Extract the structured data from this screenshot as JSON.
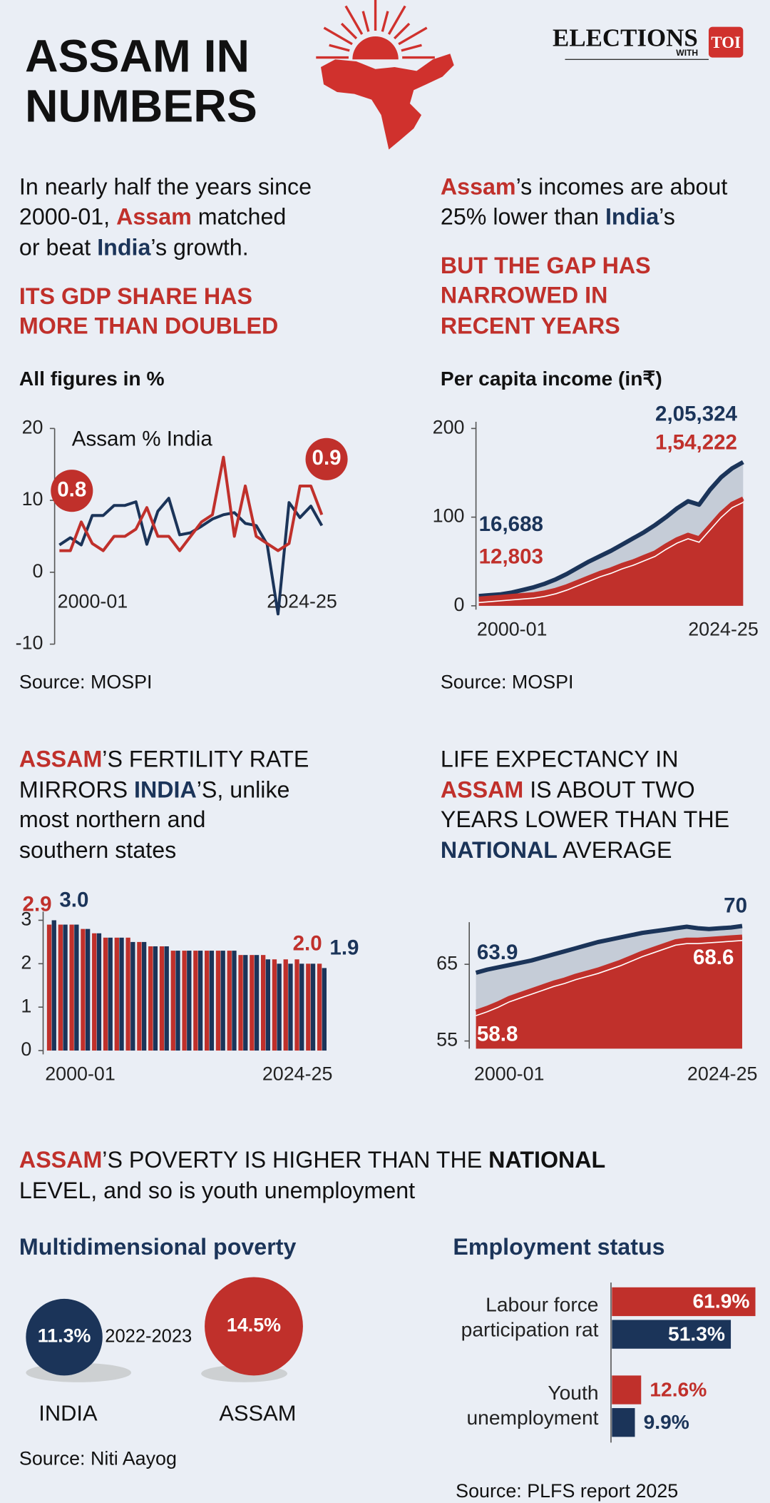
{
  "header": {
    "title": [
      "ASSAM IN",
      "NUMBERS"
    ],
    "brand": "ELECTIONS",
    "brand_sub": "WITH",
    "brand_logo": "TOI"
  },
  "sections": {
    "gdp": {
      "intro": [
        [
          "In nearly half the years since"
        ],
        [
          "2000-01, ",
          "Assam",
          " matched"
        ],
        [
          "or beat ",
          "India",
          "’s growth."
        ]
      ],
      "headline": [
        "ITS GDP SHARE HAS",
        "MORE THAN DOUBLED"
      ]
    },
    "income": {
      "intro": [
        [
          "Assam",
          "’s incomes are about"
        ],
        [
          "25% lower than ",
          "India",
          "’s"
        ]
      ],
      "headline": [
        "BUT THE GAP HAS",
        "NARROWED IN",
        "RECENT YEARS"
      ]
    },
    "fertility": {
      "heading": [
        [
          "ASSAM",
          "’S FERTILITY RATE"
        ],
        [
          "MIRRORS ",
          "INDIA",
          "’S, unlike"
        ],
        [
          "most northern and"
        ],
        [
          "southern states"
        ]
      ]
    },
    "life": {
      "heading": [
        [
          "LIFE EXPECTANCY IN"
        ],
        [
          "ASSAM",
          " IS ABOUT TWO"
        ],
        [
          "YEARS LOWER THAN THE"
        ],
        [
          "NATIONAL",
          " AVERAGE"
        ]
      ]
    },
    "poverty": {
      "heading": [
        [
          "ASSAM",
          "’S POVERTY IS HIGHER THAN THE ",
          "NATIONAL"
        ],
        [
          "LEVEL, and so is youth unemployment"
        ]
      ]
    }
  },
  "chart_data": [
    {
      "type": "line",
      "title": "All figures in %",
      "label": "Assam % India",
      "source": "Source: MOSPI",
      "annotations": [
        "0.8",
        "0.9"
      ],
      "categories": [
        "2000-01",
        null,
        null,
        null,
        null,
        null,
        null,
        null,
        null,
        null,
        null,
        null,
        null,
        null,
        null,
        null,
        null,
        null,
        null,
        null,
        null,
        null,
        null,
        null,
        "2024-25"
      ],
      "series": [
        {
          "color": "#c0302b",
          "values": [
            3,
            3,
            7,
            4,
            3,
            5,
            5,
            6,
            9,
            5,
            5,
            3,
            5,
            7,
            8,
            16,
            5,
            12,
            5,
            4,
            3,
            4,
            12,
            12,
            8
          ]
        },
        {
          "color": "#1b3459",
          "values": [
            3.8,
            4.8,
            3.8,
            7.9,
            7.9,
            9.3,
            9.3,
            9.8,
            3.9,
            8.5,
            10.3,
            5.2,
            5.5,
            6.4,
            7.4,
            8.0,
            8.3,
            6.8,
            6.5,
            3.9,
            -5.8,
            9.7,
            7.6,
            9.2,
            6.5
          ]
        }
      ],
      "ylim": [
        -10,
        20
      ],
      "yticks": [
        -10,
        0,
        10,
        20
      ]
    },
    {
      "type": "area",
      "title": "Per capita income (in₹)",
      "source": "Source: MOSPI",
      "annotations": [
        "2,05,324",
        "1,54,222",
        "16,688",
        "12,803"
      ],
      "categories": [
        "2000-01",
        null,
        null,
        null,
        null,
        null,
        null,
        null,
        null,
        null,
        null,
        null,
        null,
        null,
        null,
        null,
        null,
        null,
        null,
        null,
        null,
        null,
        null,
        null,
        "2024-25"
      ],
      "series": [
        {
          "color": "#c0302b",
          "fill": "#c0302b",
          "values": [
            8,
            9,
            10,
            11,
            12,
            13,
            15,
            18,
            22,
            27,
            32,
            37,
            41,
            46,
            50,
            55,
            60,
            68,
            75,
            80,
            76,
            90,
            104,
            115,
            121
          ]
        },
        {
          "color": "#1b3459",
          "fill": "#c5ccd7",
          "values": [
            11,
            12,
            13,
            15,
            18,
            21,
            25,
            30,
            36,
            43,
            50,
            56,
            62,
            69,
            76,
            83,
            91,
            100,
            110,
            118,
            114,
            131,
            145,
            155,
            162
          ]
        }
      ],
      "ylim": [
        0,
        210
      ],
      "yticks": [
        0,
        100,
        200
      ]
    },
    {
      "type": "bar",
      "categories": [
        "2000-01",
        null,
        null,
        null,
        null,
        null,
        null,
        null,
        null,
        null,
        null,
        null,
        null,
        null,
        null,
        null,
        null,
        null,
        null,
        null,
        null,
        null,
        null,
        null,
        "2024-25"
      ],
      "series": [
        {
          "color": "#c0302b",
          "values": [
            2.9,
            2.9,
            2.9,
            2.8,
            2.7,
            2.6,
            2.6,
            2.6,
            2.5,
            2.4,
            2.4,
            2.3,
            2.3,
            2.3,
            2.3,
            2.3,
            2.3,
            2.2,
            2.2,
            2.2,
            2.1,
            2.1,
            2.1,
            2.0,
            2.0
          ],
          "value_labels": [
            "2.9",
            null,
            null,
            null,
            null,
            null,
            null,
            null,
            null,
            null,
            null,
            null,
            null,
            null,
            null,
            null,
            null,
            null,
            null,
            null,
            null,
            null,
            null,
            null,
            "2.0"
          ]
        },
        {
          "color": "#1b3459",
          "values": [
            3.0,
            2.9,
            2.9,
            2.8,
            2.7,
            2.6,
            2.6,
            2.5,
            2.5,
            2.4,
            2.4,
            2.3,
            2.3,
            2.3,
            2.3,
            2.3,
            2.3,
            2.2,
            2.2,
            2.1,
            2.0,
            2.0,
            2.0,
            2.0,
            1.9
          ],
          "value_labels": [
            "3.0",
            null,
            null,
            null,
            null,
            null,
            null,
            null,
            null,
            null,
            null,
            null,
            null,
            null,
            null,
            null,
            null,
            null,
            null,
            null,
            null,
            null,
            null,
            null,
            "1.9"
          ]
        }
      ],
      "ylim": [
        0,
        3.2
      ],
      "yticks": [
        0,
        1,
        2,
        3
      ]
    },
    {
      "type": "area",
      "categories": [
        "2000-01",
        null,
        null,
        null,
        null,
        null,
        null,
        null,
        null,
        null,
        null,
        null,
        null,
        null,
        null,
        null,
        null,
        null,
        null,
        null,
        null,
        null,
        null,
        null,
        "2024-25"
      ],
      "series": [
        {
          "color": "#c0302b",
          "fill": "#c0302b",
          "values": [
            58.8,
            59.3,
            59.9,
            60.6,
            61.1,
            61.6,
            62.1,
            62.6,
            63.0,
            63.5,
            63.9,
            64.3,
            64.8,
            65.3,
            65.9,
            66.5,
            67.0,
            67.5,
            68.0,
            68.2,
            68.2,
            68.3,
            68.4,
            68.5,
            68.6
          ]
        },
        {
          "color": "#1b3459",
          "fill": "#c5ccd7",
          "values": [
            63.9,
            64.3,
            64.6,
            64.9,
            65.2,
            65.5,
            65.9,
            66.3,
            66.7,
            67.1,
            67.5,
            67.9,
            68.2,
            68.5,
            68.8,
            69.1,
            69.3,
            69.5,
            69.7,
            69.9,
            69.7,
            69.6,
            69.7,
            69.8,
            70
          ]
        }
      ],
      "ylim": [
        54,
        70.5
      ],
      "yticks": [
        55,
        65
      ]
    },
    {
      "type": "bubble",
      "title": "Multidimensional poverty",
      "period": "2022-2023",
      "source": "Source: Niti Aayog",
      "categories": [
        "INDIA",
        "ASSAM"
      ],
      "values": [
        11.3,
        14.5
      ],
      "value_labels": [
        "11.3%",
        "14.5%"
      ],
      "colors": [
        "#1b3459",
        "#c0302b"
      ]
    },
    {
      "type": "barh",
      "title": "Employment status",
      "source": "Source: PLFS report 2025",
      "categories": [
        "Labour force participation rat",
        "Youth unemployment"
      ],
      "series": [
        {
          "color": "#c0302b",
          "values": [
            61.9,
            12.6
          ],
          "value_labels": [
            "61.9%",
            "12.6%"
          ]
        },
        {
          "color": "#1b3459",
          "values": [
            51.3,
            9.9
          ],
          "value_labels": [
            "51.3%",
            "9.9%"
          ]
        }
      ]
    }
  ]
}
